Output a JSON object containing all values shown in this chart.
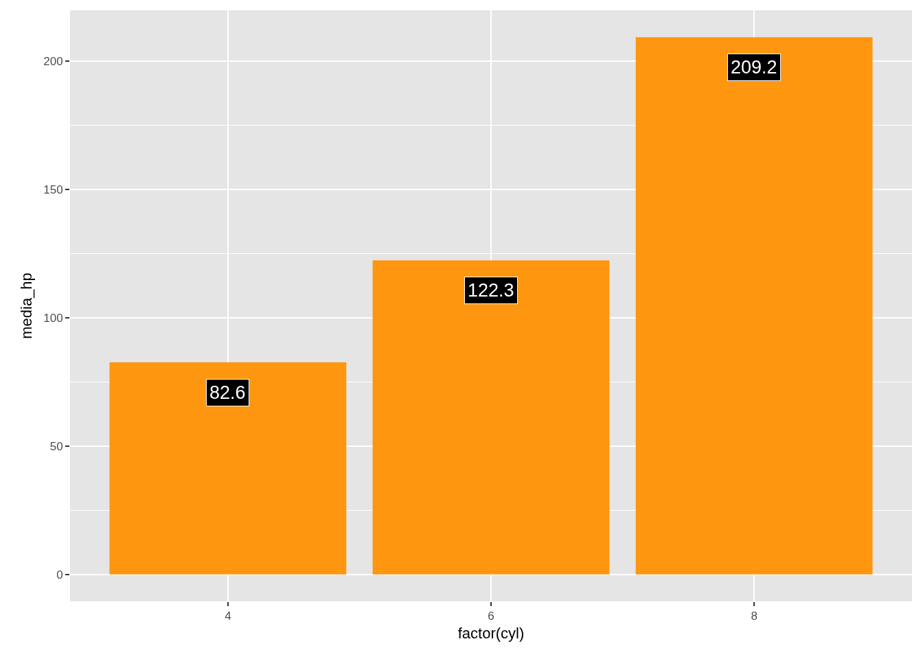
{
  "chart_data": {
    "type": "bar",
    "xlabel": "factor(cyl)",
    "ylabel": "media_hp",
    "categories": [
      "4",
      "6",
      "8"
    ],
    "values": [
      82.6,
      122.3,
      209.2
    ],
    "color": "#ff9610",
    "data_labels": true,
    "ylim": [
      -10.46,
      219.66
    ],
    "yticks": [
      0,
      50,
      100,
      150,
      200
    ],
    "grid": true
  }
}
